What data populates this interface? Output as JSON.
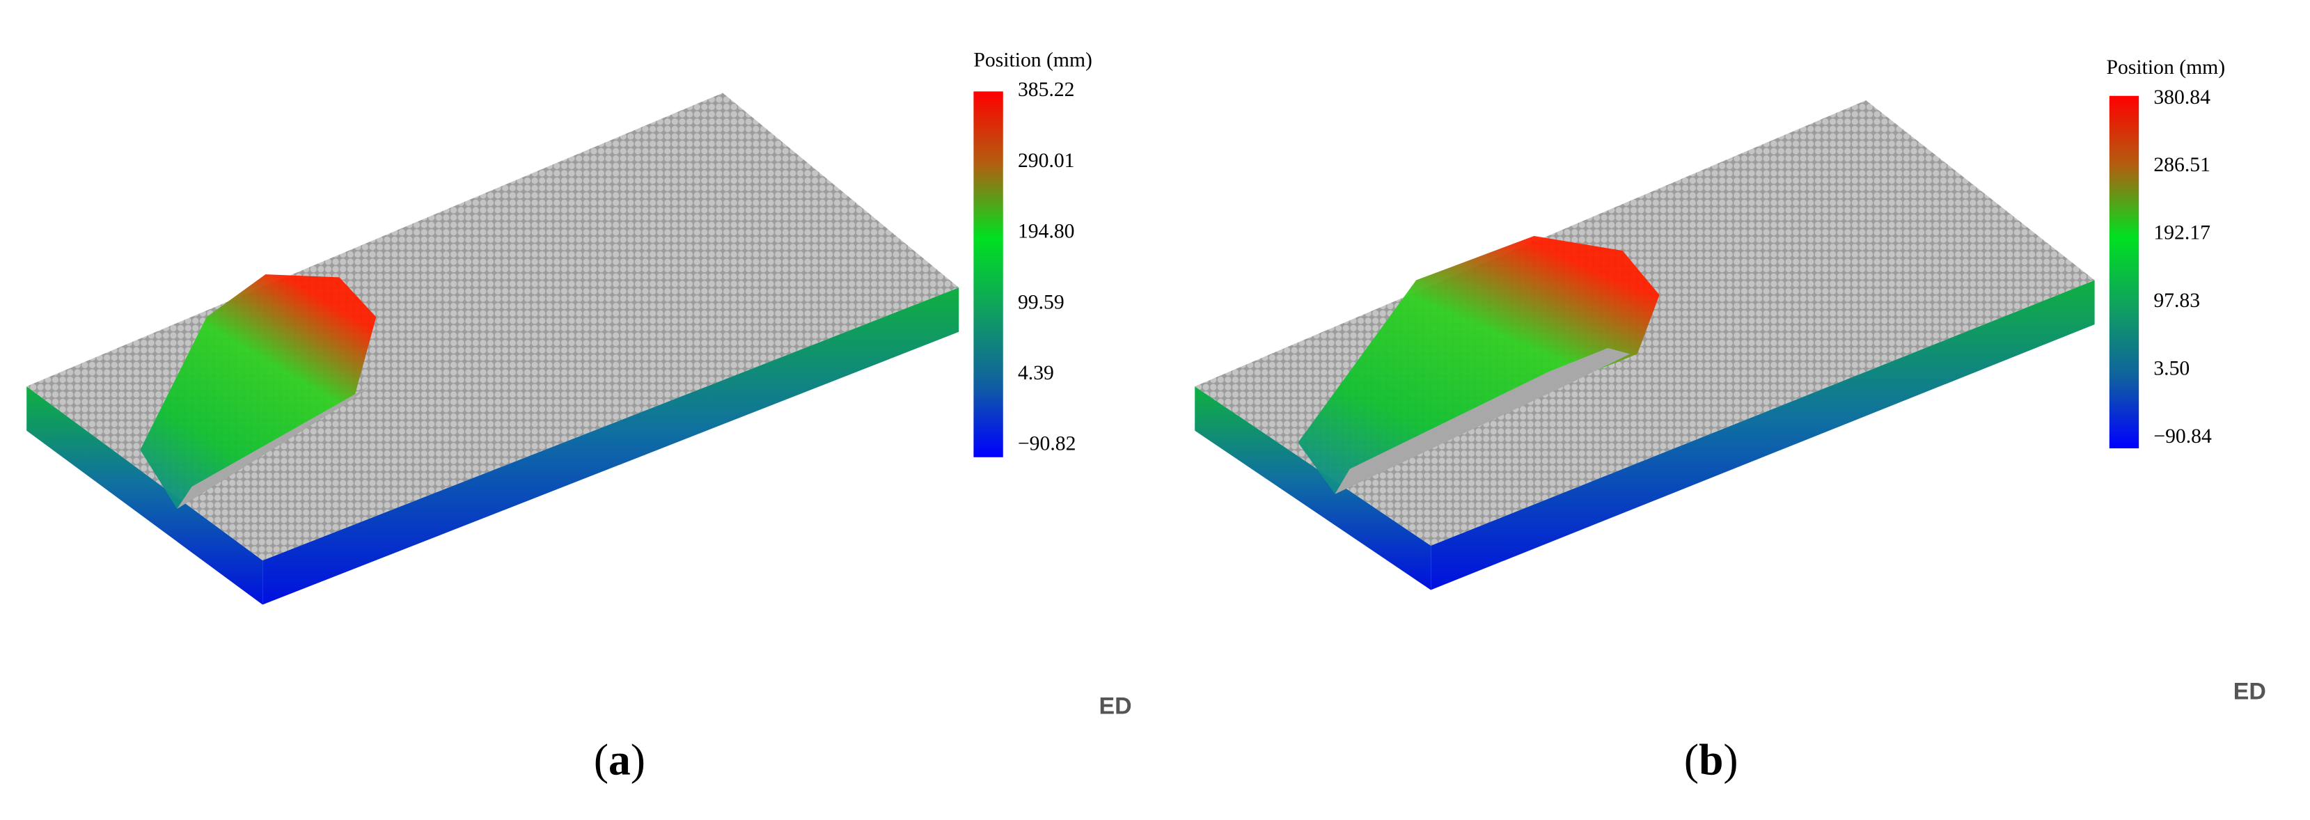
{
  "panels": [
    {
      "colorbar": {
        "title": "Position (mm)",
        "ticks": [
          "385.22",
          "290.01",
          "194.80",
          "99.59",
          "4.39",
          "−90.82"
        ]
      },
      "caption": [
        "(",
        "a",
        ")"
      ],
      "watermark": "ED"
    },
    {
      "colorbar": {
        "title": "Position (mm)",
        "ticks": [
          "380.84",
          "286.51",
          "192.17",
          "97.83",
          "3.50",
          "−90.84"
        ]
      },
      "caption": [
        "(",
        "b",
        ")"
      ],
      "watermark": "ED"
    }
  ]
}
